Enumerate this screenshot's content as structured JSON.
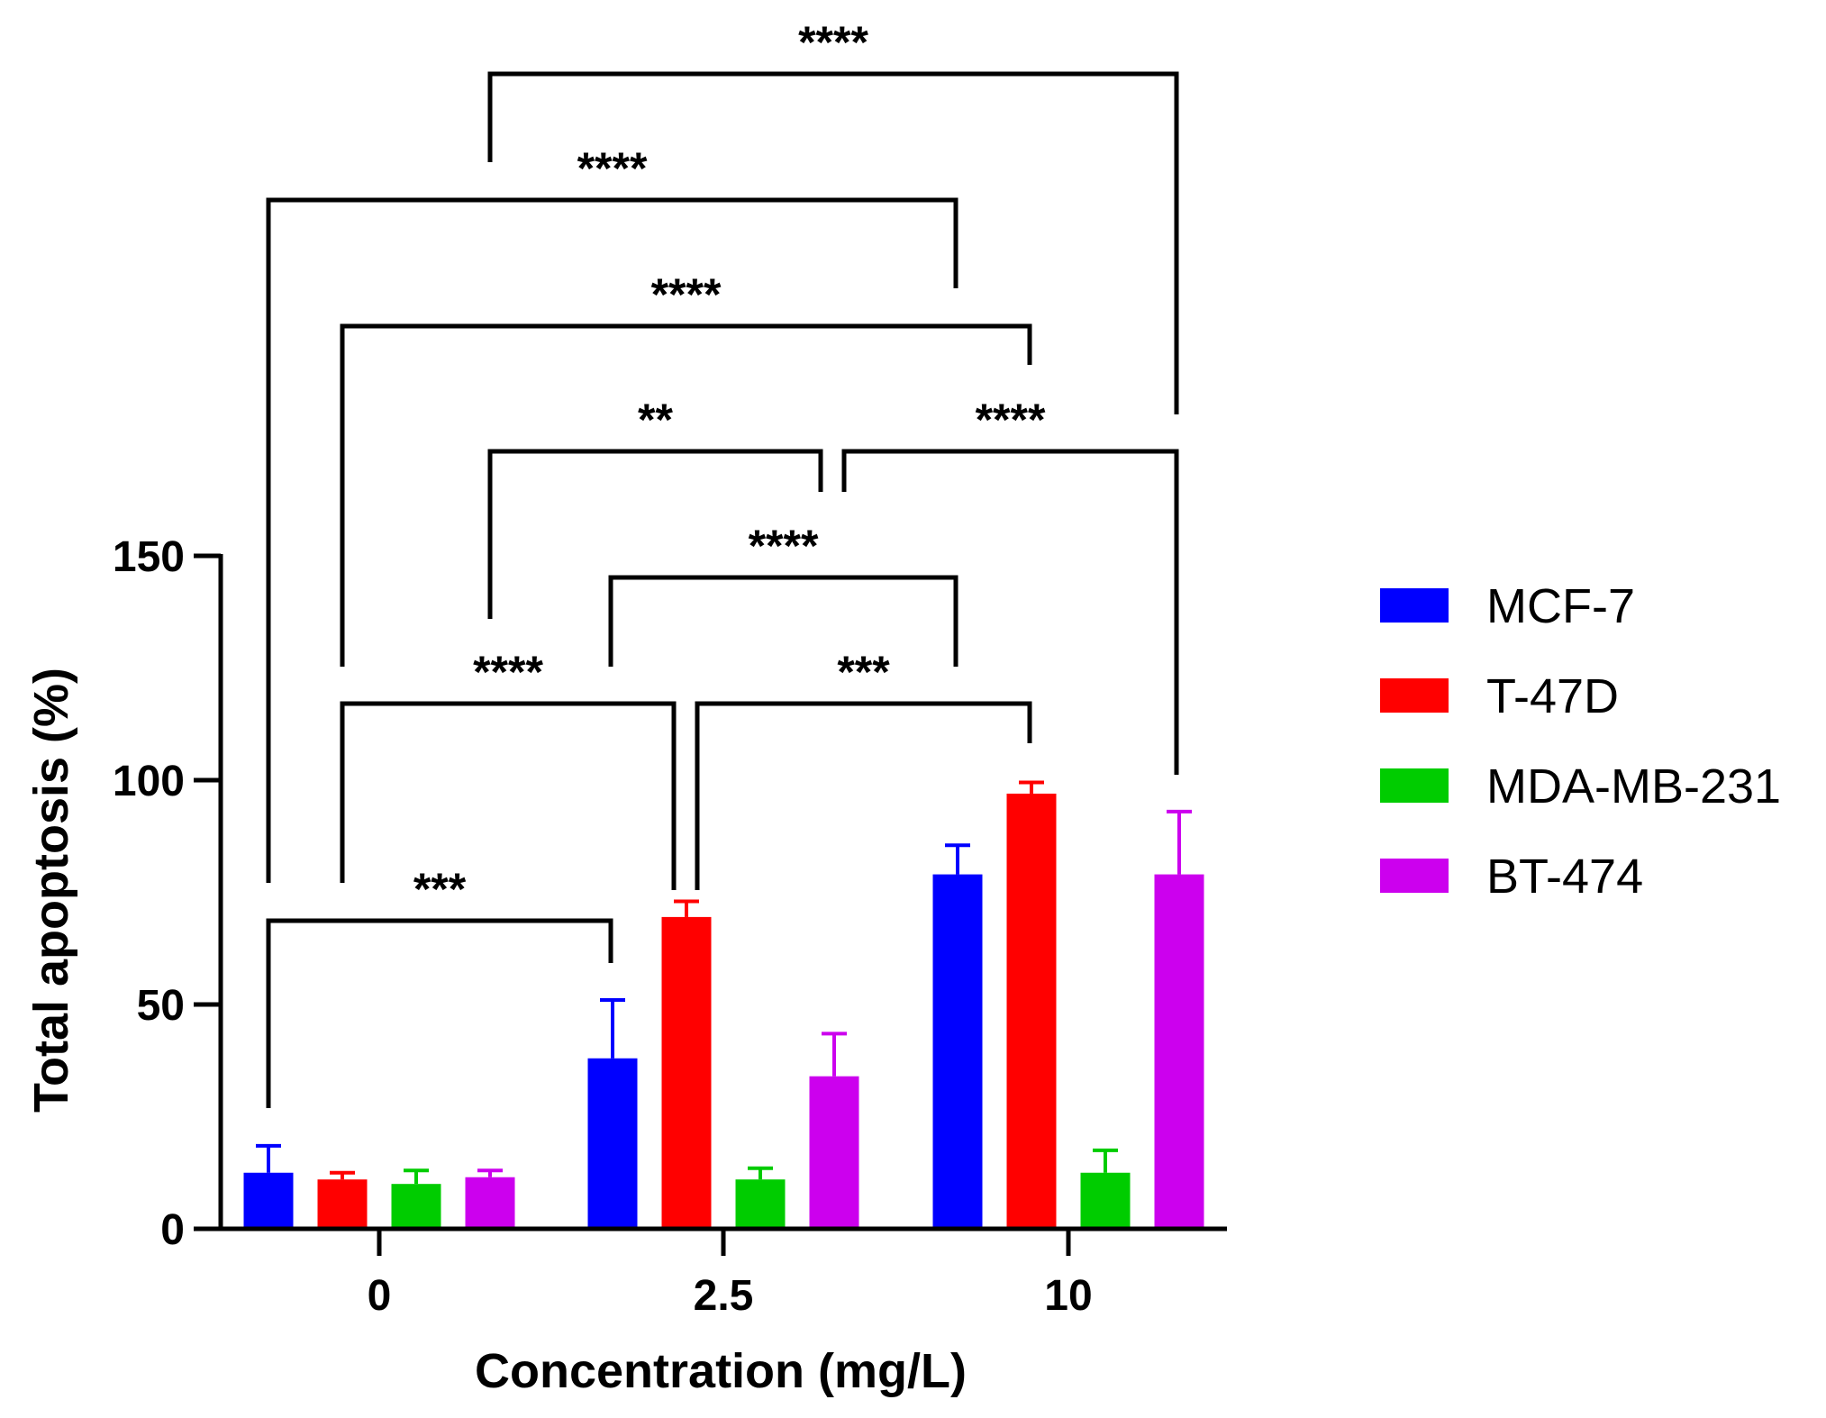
{
  "chart_data": {
    "type": "bar",
    "xlabel": "Concentration (mg/L)",
    "ylabel": "Total apoptosis (%)",
    "ylim": [
      0,
      150
    ],
    "yticks": [
      0,
      50,
      100,
      150
    ],
    "categories": [
      "0",
      "2.5",
      "10"
    ],
    "series": [
      {
        "name": "MCF-7",
        "color": "#0000ff",
        "values": [
          12.5,
          38,
          79
        ],
        "errors": [
          6,
          13,
          6.5
        ]
      },
      {
        "name": "T-47D",
        "color": "#ff0000",
        "values": [
          11,
          69.5,
          97
        ],
        "errors": [
          1.5,
          3.5,
          2.5
        ]
      },
      {
        "name": "MDA-MB-231",
        "color": "#00cc00",
        "values": [
          10,
          11,
          12.5
        ],
        "errors": [
          3,
          2.5,
          5
        ]
      },
      {
        "name": "BT-474",
        "color": "#cc00ee",
        "values": [
          11.5,
          34,
          79
        ],
        "errors": [
          1.5,
          9.5,
          14
        ]
      }
    ],
    "legend_position": "right",
    "significance": [
      {
        "label": "***",
        "from": "MCF-7 @ 0",
        "to": "MCF-7 @ 2.5"
      },
      {
        "label": "****",
        "from": "T-47D @ 0",
        "to": "T-47D @ 2.5"
      },
      {
        "label": "***",
        "from": "T-47D @ 2.5",
        "to": "T-47D @ 10"
      },
      {
        "label": "****",
        "from": "MCF-7 @ 2.5",
        "to": "MCF-7 @ 10"
      },
      {
        "label": "**",
        "from": "BT-474 @ 0",
        "to": "BT-474 @ 2.5"
      },
      {
        "label": "****",
        "from": "BT-474 @ 2.5",
        "to": "BT-474 @ 10"
      },
      {
        "label": "****",
        "from": "T-47D @ 0",
        "to": "T-47D @ 10"
      },
      {
        "label": "****",
        "from": "MCF-7 @ 0",
        "to": "MCF-7 @ 10"
      },
      {
        "label": "****",
        "from": "BT-474 @ 0",
        "to": "BT-474 @ 10"
      }
    ]
  }
}
